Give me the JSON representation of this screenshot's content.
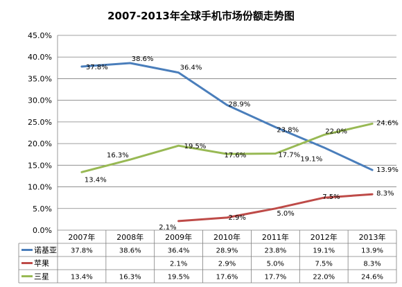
{
  "chart_data": {
    "type": "line",
    "title": "2007-2013年全球手机市场份额走势图",
    "categories": [
      "2007年",
      "2008年",
      "2009年",
      "2010年",
      "2011年",
      "2012年",
      "2013年"
    ],
    "ylim": [
      0,
      45
    ],
    "yticks": [
      "0.0%",
      "5.0%",
      "10.0%",
      "15.0%",
      "20.0%",
      "25.0%",
      "30.0%",
      "35.0%",
      "40.0%",
      "45.0%"
    ],
    "grid": true,
    "legend": "data-table-left",
    "series": [
      {
        "name": "诺基亚",
        "color": "#4a7ebb",
        "values": [
          37.8,
          38.6,
          36.4,
          28.9,
          23.8,
          19.1,
          13.9
        ],
        "labels": [
          "37.8%",
          "38.6%",
          "36.4%",
          "28.9%",
          "23.8%",
          "19.1%",
          "13.9%"
        ]
      },
      {
        "name": "苹果",
        "color": "#be4b48",
        "values": [
          null,
          null,
          2.1,
          2.9,
          5.0,
          7.5,
          8.3
        ],
        "labels": [
          "",
          "",
          "2.1%",
          "2.9%",
          "5.0%",
          "7.5%",
          "8.3%"
        ]
      },
      {
        "name": "三星",
        "color": "#98b954",
        "values": [
          13.4,
          16.3,
          19.5,
          17.6,
          17.7,
          22.0,
          24.6
        ],
        "labels": [
          "13.4%",
          "16.3%",
          "19.5%",
          "17.6%",
          "17.7%",
          "22.0%",
          "24.6%"
        ]
      }
    ]
  }
}
